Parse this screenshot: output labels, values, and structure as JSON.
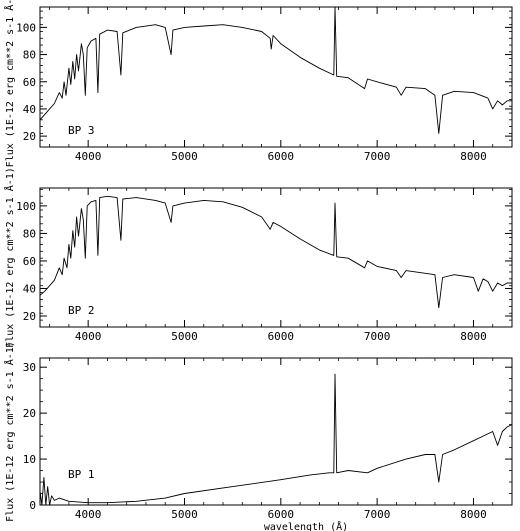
{
  "chart_data": [
    {
      "type": "line",
      "annotation": "BP 3",
      "ylabel": "Flux (1E-12 erg cm**2 s-1 Å-1)",
      "xlabel": "",
      "xlim": [
        3500,
        8400
      ],
      "ylim": [
        12,
        115
      ],
      "xticks": [
        4000,
        5000,
        6000,
        7000,
        8000
      ],
      "yticks": [
        20,
        40,
        60,
        80,
        100
      ],
      "series": [
        {
          "points": [
            [
              3500,
              32
            ],
            [
              3550,
              36
            ],
            [
              3600,
              40
            ],
            [
              3650,
              44
            ],
            [
              3700,
              52
            ],
            [
              3730,
              48
            ],
            [
              3750,
              60
            ],
            [
              3770,
              50
            ],
            [
              3800,
              70
            ],
            [
              3820,
              58
            ],
            [
              3840,
              75
            ],
            [
              3860,
              62
            ],
            [
              3880,
              80
            ],
            [
              3900,
              68
            ],
            [
              3930,
              88
            ],
            [
              3950,
              80
            ],
            [
              3970,
              50
            ],
            [
              3990,
              85
            ],
            [
              4030,
              90
            ],
            [
              4080,
              92
            ],
            [
              4101,
              52
            ],
            [
              4120,
              95
            ],
            [
              4200,
              98
            ],
            [
              4300,
              97
            ],
            [
              4340,
              65
            ],
            [
              4360,
              96
            ],
            [
              4500,
              100
            ],
            [
              4700,
              102
            ],
            [
              4800,
              100
            ],
            [
              4861,
              80
            ],
            [
              4880,
              98
            ],
            [
              5000,
              100
            ],
            [
              5200,
              101
            ],
            [
              5400,
              102
            ],
            [
              5600,
              100
            ],
            [
              5800,
              97
            ],
            [
              5890,
              92
            ],
            [
              5900,
              84
            ],
            [
              5920,
              94
            ],
            [
              6000,
              88
            ],
            [
              6200,
              78
            ],
            [
              6400,
              70
            ],
            [
              6550,
              65
            ],
            [
              6563,
              115
            ],
            [
              6580,
              64
            ],
            [
              6700,
              63
            ],
            [
              6870,
              55
            ],
            [
              6900,
              62
            ],
            [
              7000,
              60
            ],
            [
              7200,
              56
            ],
            [
              7250,
              50
            ],
            [
              7300,
              56
            ],
            [
              7500,
              55
            ],
            [
              7600,
              50
            ],
            [
              7640,
              22
            ],
            [
              7680,
              50
            ],
            [
              7800,
              53
            ],
            [
              8000,
              52
            ],
            [
              8150,
              48
            ],
            [
              8200,
              40
            ],
            [
              8250,
              46
            ],
            [
              8300,
              43
            ],
            [
              8350,
              46
            ],
            [
              8400,
              46
            ]
          ]
        }
      ]
    },
    {
      "type": "line",
      "annotation": "BP 2",
      "ylabel": "Flux (1E-12 erg cm**2 s-1 Å-1)",
      "xlabel": "",
      "xlim": [
        3500,
        8400
      ],
      "ylim": [
        12,
        113
      ],
      "xticks": [
        4000,
        5000,
        6000,
        7000,
        8000
      ],
      "yticks": [
        20,
        40,
        60,
        80,
        100
      ],
      "series": [
        {
          "points": [
            [
              3500,
              35
            ],
            [
              3550,
              38
            ],
            [
              3600,
              42
            ],
            [
              3650,
              46
            ],
            [
              3700,
              55
            ],
            [
              3730,
              50
            ],
            [
              3750,
              62
            ],
            [
              3780,
              55
            ],
            [
              3800,
              72
            ],
            [
              3820,
              62
            ],
            [
              3840,
              82
            ],
            [
              3860,
              70
            ],
            [
              3880,
              92
            ],
            [
              3900,
              78
            ],
            [
              3930,
              98
            ],
            [
              3950,
              90
            ],
            [
              3970,
              62
            ],
            [
              3990,
              100
            ],
            [
              4030,
              103
            ],
            [
              4080,
              104
            ],
            [
              4101,
              64
            ],
            [
              4120,
              106
            ],
            [
              4200,
              107
            ],
            [
              4300,
              106
            ],
            [
              4340,
              75
            ],
            [
              4360,
              105
            ],
            [
              4500,
              106
            ],
            [
              4700,
              104
            ],
            [
              4800,
              102
            ],
            [
              4861,
              88
            ],
            [
              4880,
              100
            ],
            [
              5000,
              102
            ],
            [
              5200,
              104
            ],
            [
              5400,
              103
            ],
            [
              5600,
              99
            ],
            [
              5800,
              92
            ],
            [
              5890,
              83
            ],
            [
              5920,
              88
            ],
            [
              6000,
              85
            ],
            [
              6200,
              76
            ],
            [
              6400,
              68
            ],
            [
              6550,
              64
            ],
            [
              6563,
              102
            ],
            [
              6580,
              63
            ],
            [
              6700,
              62
            ],
            [
              6870,
              55
            ],
            [
              6900,
              60
            ],
            [
              7000,
              56
            ],
            [
              7200,
              53
            ],
            [
              7250,
              48
            ],
            [
              7300,
              53
            ],
            [
              7500,
              51
            ],
            [
              7600,
              50
            ],
            [
              7640,
              26
            ],
            [
              7680,
              48
            ],
            [
              7800,
              50
            ],
            [
              8000,
              48
            ],
            [
              8050,
              38
            ],
            [
              8100,
              47
            ],
            [
              8150,
              45
            ],
            [
              8200,
              38
            ],
            [
              8250,
              44
            ],
            [
              8300,
              42
            ],
            [
              8350,
              44
            ],
            [
              8400,
              44
            ]
          ]
        }
      ]
    },
    {
      "type": "line",
      "annotation": "BP 1",
      "ylabel": "Flux (1E-12 erg cm**2 s-1 Å-1)",
      "xlabel": "wavelength (Å)",
      "xlim": [
        3500,
        8400
      ],
      "ylim": [
        0,
        32
      ],
      "xticks": [
        4000,
        5000,
        6000,
        7000,
        8000
      ],
      "yticks": [
        0,
        10,
        20,
        30
      ],
      "series": [
        {
          "points": [
            [
              3500,
              3
            ],
            [
              3520,
              0
            ],
            [
              3540,
              6
            ],
            [
              3560,
              0
            ],
            [
              3580,
              4
            ],
            [
              3600,
              0
            ],
            [
              3620,
              2
            ],
            [
              3650,
              1
            ],
            [
              3700,
              1.5
            ],
            [
              3800,
              0.8
            ],
            [
              4000,
              0.5
            ],
            [
              4200,
              0.5
            ],
            [
              4500,
              0.8
            ],
            [
              4800,
              1.5
            ],
            [
              5000,
              2.5
            ],
            [
              5500,
              4
            ],
            [
              6000,
              5.5
            ],
            [
              6300,
              6.5
            ],
            [
              6500,
              7
            ],
            [
              6550,
              7
            ],
            [
              6563,
              28.5
            ],
            [
              6580,
              7
            ],
            [
              6700,
              7.5
            ],
            [
              6900,
              7
            ],
            [
              7000,
              8
            ],
            [
              7300,
              10
            ],
            [
              7500,
              11
            ],
            [
              7600,
              11
            ],
            [
              7640,
              5
            ],
            [
              7680,
              11
            ],
            [
              7800,
              12
            ],
            [
              8000,
              14
            ],
            [
              8100,
              15
            ],
            [
              8200,
              16
            ],
            [
              8250,
              13
            ],
            [
              8300,
              16
            ],
            [
              8350,
              17
            ],
            [
              8400,
              17.5
            ]
          ]
        }
      ]
    }
  ]
}
